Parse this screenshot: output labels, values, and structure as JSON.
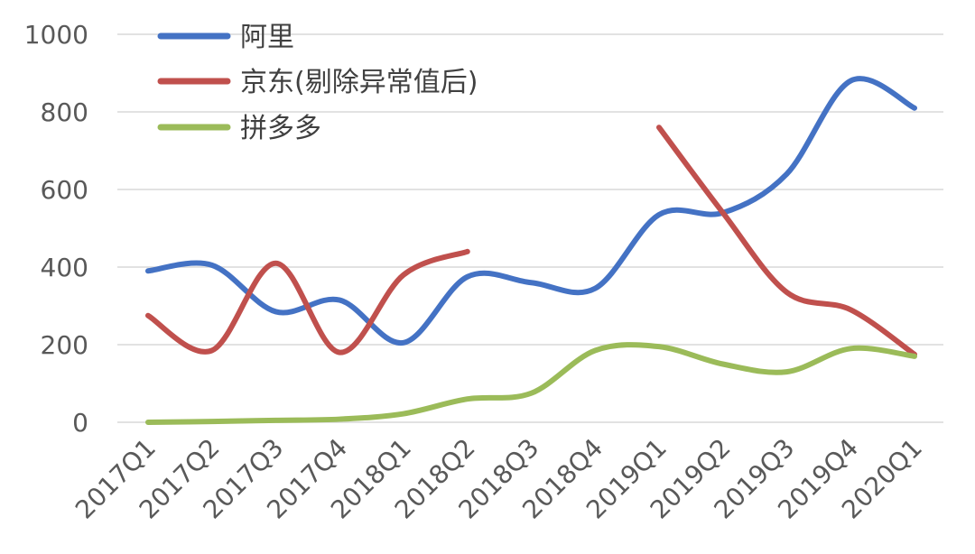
{
  "chart_data": {
    "type": "line",
    "categories": [
      "2017Q1",
      "2017Q2",
      "2017Q3",
      "2017Q4",
      "2018Q1",
      "2018Q2",
      "2018Q3",
      "2018Q4",
      "2019Q1",
      "2019Q2",
      "2019Q3",
      "2019Q4",
      "2020Q1"
    ],
    "ylim": [
      0,
      1000
    ],
    "yticks": [
      "0",
      "200",
      "400",
      "600",
      "800",
      "1000"
    ],
    "grid": true,
    "legend_position": "top-left",
    "series": [
      {
        "name": "阿里",
        "color": "#4472C4",
        "values": [
          390,
          405,
          285,
          315,
          205,
          375,
          360,
          345,
          535,
          540,
          640,
          880,
          810
        ]
      },
      {
        "name": "京东(剔除异常值后)",
        "color": "#C0504D",
        "values": [
          275,
          185,
          410,
          180,
          380,
          440,
          null,
          null,
          760,
          540,
          335,
          290,
          175
        ]
      },
      {
        "name": "拼多多",
        "color": "#9BBB59",
        "values": [
          0,
          2,
          5,
          8,
          22,
          60,
          75,
          185,
          195,
          150,
          130,
          190,
          170
        ]
      }
    ]
  }
}
